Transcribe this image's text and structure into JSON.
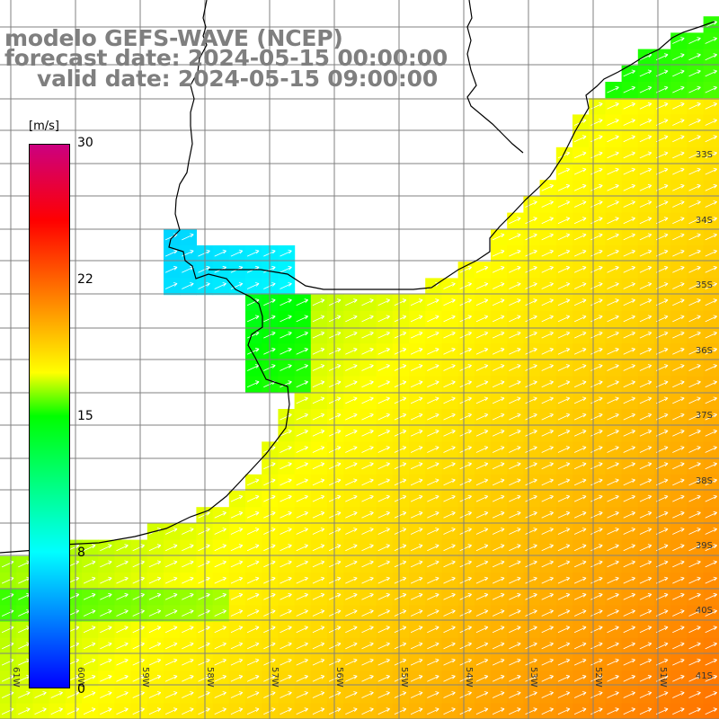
{
  "title": {
    "model": "modelo GEFS-WAVE (NCEP)",
    "forecast": "forecast date: 2024-05-15 00:00:00",
    "valid": "valid date: 2024-05-15 09:00:00"
  },
  "colorbar": {
    "units": "[m/s]",
    "ticks": [
      "30",
      "22",
      "15",
      "8",
      "0"
    ],
    "stops": [
      "#0000ff",
      "#00ffff",
      "#00ff00",
      "#ffff00",
      "#ff7f00",
      "#ff0000",
      "#cc0080"
    ]
  },
  "lat_labels": [
    "33S",
    "34S",
    "35S",
    "36S",
    "37S",
    "38S",
    "39S",
    "40S",
    "41S"
  ],
  "lon_labels": [
    "61W",
    "60W",
    "59W",
    "58W",
    "57W",
    "56W",
    "55W",
    "54W",
    "53W",
    "52W",
    "51W"
  ],
  "colors": {
    "land": "#ffffff",
    "coast": "#000000",
    "grid": "#808080",
    "arrow": "#ffffff",
    "title": "#7f7f7f"
  }
}
